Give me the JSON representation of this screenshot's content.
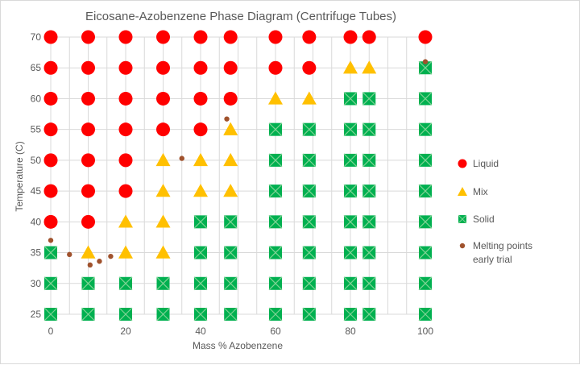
{
  "chart_data": {
    "type": "scatter",
    "title": "Eicosane-Azobenzene  Phase Diagram (Centrifuge Tubes)",
    "xlabel": "Mass % Azobenzene",
    "ylabel": "Temperature (C)",
    "xlim": [
      0,
      100
    ],
    "ylim": [
      25,
      70
    ],
    "xticks": [
      0,
      20,
      40,
      60,
      80,
      100
    ],
    "yticks": [
      25,
      30,
      35,
      40,
      45,
      50,
      55,
      60,
      65,
      70
    ],
    "grid": true,
    "legend_position": "right",
    "colors": {
      "liquid": "#ff0000",
      "mix": "#ffc000",
      "solid": "#00b050",
      "solid_cross": "#7fd394",
      "melting": "#a0522d",
      "grid": "#d9d9d9",
      "text": "#595959"
    },
    "series": [
      {
        "name": "Liquid",
        "marker": "circle",
        "points": [
          [
            0,
            70
          ],
          [
            10,
            70
          ],
          [
            20,
            70
          ],
          [
            30,
            70
          ],
          [
            40,
            70
          ],
          [
            48,
            70
          ],
          [
            60,
            70
          ],
          [
            69,
            70
          ],
          [
            80,
            70
          ],
          [
            85,
            70
          ],
          [
            100,
            70
          ],
          [
            0,
            65
          ],
          [
            10,
            65
          ],
          [
            20,
            65
          ],
          [
            30,
            65
          ],
          [
            40,
            65
          ],
          [
            48,
            65
          ],
          [
            60,
            65
          ],
          [
            69,
            65
          ],
          [
            0,
            60
          ],
          [
            10,
            60
          ],
          [
            20,
            60
          ],
          [
            30,
            60
          ],
          [
            40,
            60
          ],
          [
            48,
            60
          ],
          [
            0,
            55
          ],
          [
            10,
            55
          ],
          [
            20,
            55
          ],
          [
            30,
            55
          ],
          [
            40,
            55
          ],
          [
            0,
            50
          ],
          [
            10,
            50
          ],
          [
            20,
            50
          ],
          [
            0,
            45
          ],
          [
            10,
            45
          ],
          [
            20,
            45
          ],
          [
            0,
            40
          ],
          [
            10,
            40
          ]
        ]
      },
      {
        "name": "Mix",
        "marker": "triangle",
        "points": [
          [
            80,
            65
          ],
          [
            85,
            65
          ],
          [
            60,
            60
          ],
          [
            69,
            60
          ],
          [
            48,
            55
          ],
          [
            30,
            50
          ],
          [
            40,
            50
          ],
          [
            48,
            50
          ],
          [
            30,
            45
          ],
          [
            40,
            45
          ],
          [
            48,
            45
          ],
          [
            20,
            40
          ],
          [
            30,
            40
          ],
          [
            10,
            35
          ],
          [
            20,
            35
          ],
          [
            30,
            35
          ]
        ]
      },
      {
        "name": "Solid",
        "marker": "square",
        "points": [
          [
            100,
            65
          ],
          [
            80,
            60
          ],
          [
            85,
            60
          ],
          [
            100,
            60
          ],
          [
            60,
            55
          ],
          [
            69,
            55
          ],
          [
            80,
            55
          ],
          [
            85,
            55
          ],
          [
            100,
            55
          ],
          [
            60,
            50
          ],
          [
            69,
            50
          ],
          [
            80,
            50
          ],
          [
            85,
            50
          ],
          [
            100,
            50
          ],
          [
            60,
            45
          ],
          [
            69,
            45
          ],
          [
            80,
            45
          ],
          [
            85,
            45
          ],
          [
            100,
            45
          ],
          [
            40,
            40
          ],
          [
            48,
            40
          ],
          [
            60,
            40
          ],
          [
            69,
            40
          ],
          [
            80,
            40
          ],
          [
            85,
            40
          ],
          [
            100,
            40
          ],
          [
            0,
            35
          ],
          [
            40,
            35
          ],
          [
            48,
            35
          ],
          [
            60,
            35
          ],
          [
            69,
            35
          ],
          [
            80,
            35
          ],
          [
            85,
            35
          ],
          [
            100,
            35
          ],
          [
            0,
            30
          ],
          [
            10,
            30
          ],
          [
            20,
            30
          ],
          [
            30,
            30
          ],
          [
            40,
            30
          ],
          [
            48,
            30
          ],
          [
            60,
            30
          ],
          [
            69,
            30
          ],
          [
            80,
            30
          ],
          [
            85,
            30
          ],
          [
            100,
            30
          ],
          [
            0,
            25
          ],
          [
            10,
            25
          ],
          [
            20,
            25
          ],
          [
            30,
            25
          ],
          [
            40,
            25
          ],
          [
            48,
            25
          ],
          [
            60,
            25
          ],
          [
            69,
            25
          ],
          [
            80,
            25
          ],
          [
            85,
            25
          ],
          [
            100,
            25
          ]
        ]
      },
      {
        "name": "Melting points early trial",
        "legend_lines": [
          "Melting points",
          "early trial"
        ],
        "marker": "small-circle",
        "points": [
          [
            0,
            37
          ],
          [
            5,
            34.7
          ],
          [
            10.5,
            33
          ],
          [
            13,
            33.6
          ],
          [
            16,
            34.4
          ],
          [
            35,
            50.3
          ],
          [
            47,
            56.7
          ],
          [
            100,
            66
          ]
        ]
      }
    ]
  }
}
